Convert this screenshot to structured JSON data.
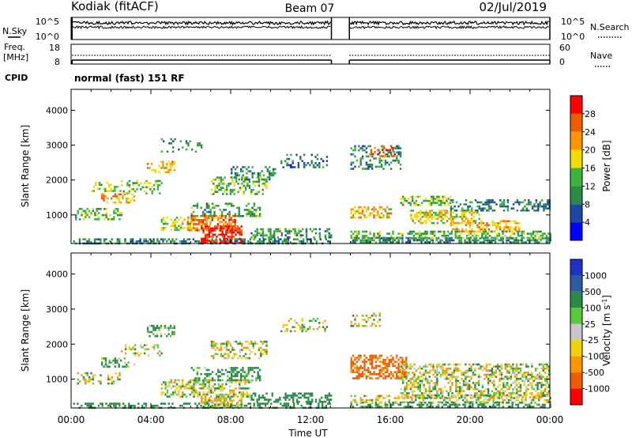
{
  "header": {
    "station": "Kodiak (fitACF)",
    "beam": "Beam 07",
    "date": "02/Jul/2019"
  },
  "noise_panel": {
    "left_label": "N.Sky",
    "left_ticks": [
      "10^5",
      "10^0"
    ],
    "right_label": "N.Search",
    "right_ticks": [
      "10^5",
      "10^0"
    ]
  },
  "freq_panel": {
    "left_label_1": "Freq.",
    "left_label_2": "[MHz]",
    "left_ticks": [
      "18",
      "8"
    ],
    "right_label": "Nave",
    "right_ticks": [
      "60",
      "0"
    ]
  },
  "cpid": {
    "label": "CPID",
    "value": "normal (fast) 151 RF"
  },
  "colors": {
    "power": [
      "#0000ff",
      "#1e46a5",
      "#2a8a46",
      "#3cb43c",
      "#f0dc00",
      "#ff9600",
      "#f05a00",
      "#ff0000"
    ],
    "velocity": [
      "#1e32c8",
      "#2c5aa5",
      "#2a8a46",
      "#5ac83c",
      "#c8c8c8",
      "#f0d200",
      "#ff9600",
      "#f05a00",
      "#ff0000"
    ],
    "ground_scatter": "#a0a0a0"
  },
  "chart_data": [
    {
      "type": "heatmap",
      "name": "power",
      "ylabel": "Slant Range [km]",
      "xlim": [
        0,
        24
      ],
      "ylim": [
        180,
        4600
      ],
      "yticks": [
        1000,
        2000,
        3000,
        4000
      ],
      "colorbar": {
        "label": "Power [dB]",
        "ticks": [
          "28",
          "24",
          "20",
          "16",
          "12",
          "8",
          "4"
        ],
        "range": [
          0,
          32
        ]
      },
      "data_gap_hours": [
        13.1,
        13.9
      ],
      "regions": [
        {
          "t": [
            0.1,
            13.0
          ],
          "r": [
            200,
            330
          ],
          "v": 9,
          "d": 0.55
        },
        {
          "t": [
            14.0,
            24.0
          ],
          "r": [
            200,
            360
          ],
          "v": 10,
          "d": 0.6
        },
        {
          "t": [
            0.2,
            2.5
          ],
          "r": [
            880,
            1200
          ],
          "v": 13,
          "d": 0.35
        },
        {
          "t": [
            1.5,
            3.2
          ],
          "r": [
            1380,
            1620
          ],
          "v": 22,
          "d": 0.45
        },
        {
          "t": [
            1.0,
            2.5
          ],
          "r": [
            1700,
            1950
          ],
          "v": 16,
          "d": 0.3
        },
        {
          "t": [
            2.5,
            4.5
          ],
          "r": [
            1600,
            2000
          ],
          "v": 14,
          "d": 0.3
        },
        {
          "t": [
            3.8,
            5.2
          ],
          "r": [
            2250,
            2550
          ],
          "v": 20,
          "d": 0.45
        },
        {
          "t": [
            4.5,
            6.2
          ],
          "r": [
            550,
            950
          ],
          "v": 16,
          "d": 0.4
        },
        {
          "t": [
            5.8,
            8.2
          ],
          "r": [
            550,
            1000
          ],
          "v": 24,
          "d": 0.6
        },
        {
          "t": [
            6.5,
            8.5
          ],
          "r": [
            220,
            700
          ],
          "v": 29,
          "d": 0.7
        },
        {
          "t": [
            6.0,
            9.5
          ],
          "r": [
            950,
            1350
          ],
          "v": 12,
          "d": 0.35
        },
        {
          "t": [
            7.0,
            9.8
          ],
          "r": [
            1600,
            2100
          ],
          "v": 14,
          "d": 0.45
        },
        {
          "t": [
            8.0,
            10.2
          ],
          "r": [
            2000,
            2400
          ],
          "v": 10,
          "d": 0.35
        },
        {
          "t": [
            9.0,
            13.0
          ],
          "r": [
            380,
            620
          ],
          "v": 12,
          "d": 0.4
        },
        {
          "t": [
            10.5,
            12.8
          ],
          "r": [
            2350,
            2750
          ],
          "v": 8,
          "d": 0.25
        },
        {
          "t": [
            4.5,
            6.5
          ],
          "r": [
            2800,
            3200
          ],
          "v": 11,
          "d": 0.15
        },
        {
          "t": [
            14.0,
            16.0
          ],
          "r": [
            900,
            1250
          ],
          "v": 20,
          "d": 0.55
        },
        {
          "t": [
            14.0,
            16.5
          ],
          "r": [
            2350,
            3000
          ],
          "v": 10,
          "d": 0.35
        },
        {
          "t": [
            15.0,
            16.2
          ],
          "r": [
            2700,
            2950
          ],
          "v": 27,
          "d": 0.4
        },
        {
          "t": [
            16.5,
            19.0
          ],
          "r": [
            1300,
            1550
          ],
          "v": 14,
          "d": 0.5
        },
        {
          "t": [
            17.0,
            20.5
          ],
          "r": [
            750,
            1150
          ],
          "v": 18,
          "d": 0.5
        },
        {
          "t": [
            19.0,
            22.5
          ],
          "r": [
            500,
            850
          ],
          "v": 21,
          "d": 0.5
        },
        {
          "t": [
            19.0,
            24.0
          ],
          "r": [
            1100,
            1450
          ],
          "v": 9,
          "d": 0.4
        },
        {
          "t": [
            14.0,
            24.0
          ],
          "r": [
            350,
            550
          ],
          "v": 14,
          "d": 0.45
        }
      ]
    },
    {
      "type": "heatmap",
      "name": "velocity",
      "ylabel": "Slant Range [km]",
      "xlabel": "Time UT",
      "xlim": [
        0,
        24
      ],
      "ylim": [
        180,
        4600
      ],
      "yticks": [
        1000,
        2000,
        3000,
        4000
      ],
      "xticks": [
        "00:00",
        "04:00",
        "08:00",
        "12:00",
        "16:00",
        "20:00",
        "00:00"
      ],
      "colorbar": {
        "label": "Velocity [m s^-1]",
        "ticks": [
          "1000",
          "500",
          "100",
          "25",
          "-25",
          "-100",
          "-500",
          "-1000"
        ],
        "range": [
          -1000,
          1000
        ]
      },
      "data_gap_hours": [
        13.1,
        13.9
      ],
      "regions": [
        {
          "t": [
            0.1,
            13.0
          ],
          "r": [
            200,
            330
          ],
          "v": 300,
          "d": 0.45
        },
        {
          "t": [
            14.0,
            24.0
          ],
          "r": [
            200,
            360
          ],
          "v": 250,
          "d": 0.5
        },
        {
          "t": [
            0.2,
            2.5
          ],
          "r": [
            880,
            1200
          ],
          "v": 0,
          "d": 0.3
        },
        {
          "t": [
            1.5,
            3.2
          ],
          "r": [
            1380,
            1620
          ],
          "v": 150,
          "d": 0.35
        },
        {
          "t": [
            2.5,
            4.5
          ],
          "r": [
            1700,
            2000
          ],
          "v": 0,
          "d": 0.3
        },
        {
          "t": [
            3.8,
            5.2
          ],
          "r": [
            2250,
            2550
          ],
          "v": 150,
          "d": 0.45
        },
        {
          "t": [
            4.5,
            9.0
          ],
          "r": [
            500,
            1000
          ],
          "v": 0,
          "d": 0.55
        },
        {
          "t": [
            6.5,
            8.5
          ],
          "r": [
            200,
            480
          ],
          "v": -60,
          "d": 0.6
        },
        {
          "t": [
            6.0,
            9.5
          ],
          "r": [
            950,
            1350
          ],
          "v": 200,
          "d": 0.4
        },
        {
          "t": [
            7.0,
            9.8
          ],
          "r": [
            1600,
            2100
          ],
          "v": 0,
          "d": 0.4
        },
        {
          "t": [
            9.0,
            13.0
          ],
          "r": [
            380,
            620
          ],
          "v": 300,
          "d": 0.4
        },
        {
          "t": [
            10.5,
            12.8
          ],
          "r": [
            2350,
            2750
          ],
          "v": 0,
          "d": 0.25
        },
        {
          "t": [
            14.0,
            16.8
          ],
          "r": [
            1000,
            1700
          ],
          "v": -600,
          "d": 0.55
        },
        {
          "t": [
            14.0,
            15.5
          ],
          "r": [
            2500,
            2900
          ],
          "v": 0,
          "d": 0.35
        },
        {
          "t": [
            16.5,
            24.0
          ],
          "r": [
            500,
            1450
          ],
          "v": 0,
          "d": 0.5
        },
        {
          "t": [
            14.0,
            24.0
          ],
          "r": [
            350,
            550
          ],
          "v": 0,
          "d": 0.4
        }
      ]
    }
  ]
}
